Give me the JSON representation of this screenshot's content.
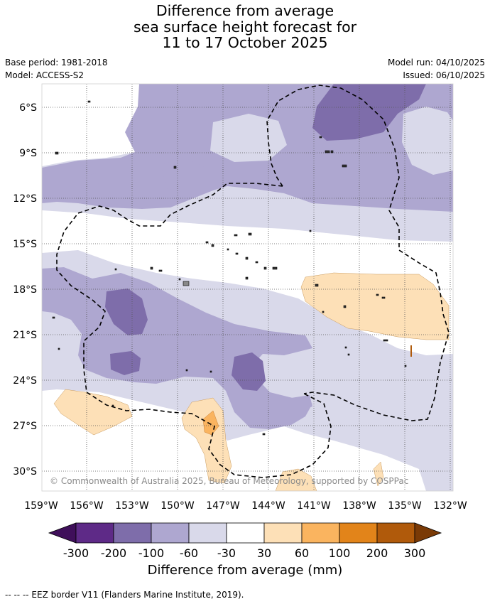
{
  "title": {
    "line1": "Difference from average",
    "line2": "sea surface height forecast for",
    "line3": "11 to 17 October 2025"
  },
  "meta": {
    "base_period": "Base period: 1981-2018",
    "model": "Model: ACCESS-S2",
    "model_run": "Model run: 04/10/2025",
    "issued": "Issued: 06/10/2025"
  },
  "map": {
    "lat_labels": [
      "6°S",
      "9°S",
      "12°S",
      "15°S",
      "18°S",
      "21°S",
      "24°S",
      "27°S",
      "30°S"
    ],
    "lon_labels": [
      "159°W",
      "156°W",
      "153°W",
      "150°W",
      "147°W",
      "144°W",
      "141°W",
      "138°W",
      "135°W",
      "132°W"
    ],
    "copyright": "© Commonwealth of Australia 2025, Bureau of Meteorology, supported by COSPPac"
  },
  "colorbar": {
    "labels": [
      "-300",
      "-200",
      "-100",
      "-60",
      "-30",
      "30",
      "60",
      "100",
      "200",
      "300"
    ],
    "colors": [
      "#3f0f5a",
      "#5e2a87",
      "#7e6daa",
      "#aea7d0",
      "#d9d9ea",
      "#ffffff",
      "#fde0b7",
      "#fab45f",
      "#e2841a",
      "#b05a0b",
      "#7a3a06"
    ],
    "title": "Difference from average (mm)"
  },
  "legend": {
    "text": "--  --  -- EEZ border V11 (Flanders Marine Institute, 2019)."
  }
}
